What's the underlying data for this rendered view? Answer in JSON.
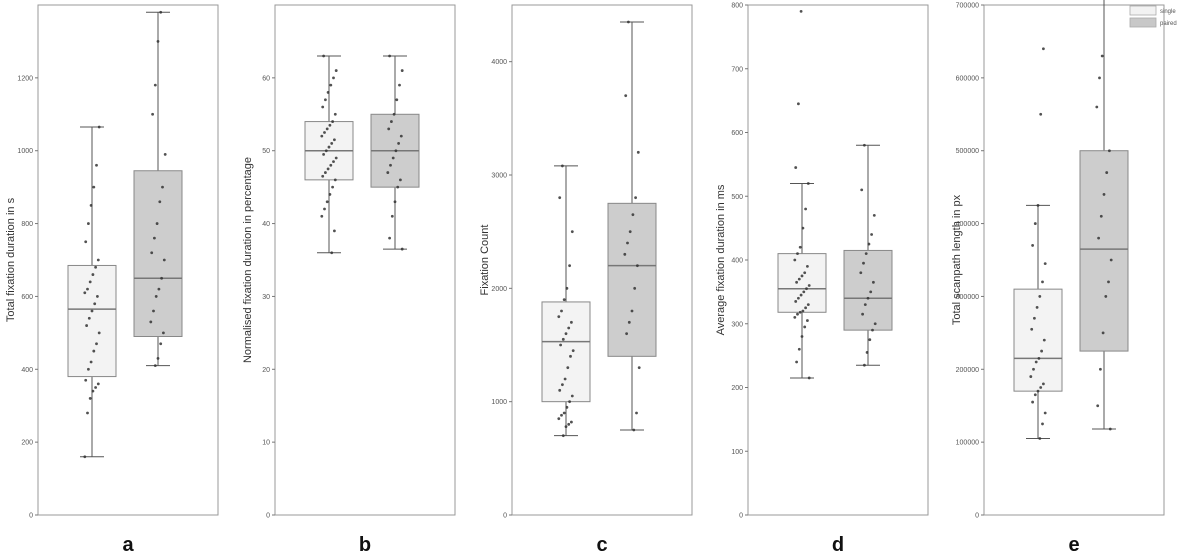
{
  "colors": {
    "single": "#f2f2f2",
    "paired": "#c8c8c8",
    "outline": "#888888",
    "points": "#333333"
  },
  "legend": [
    "single",
    "paired"
  ],
  "chart_data": [
    {
      "type": "box",
      "panel": "a",
      "ylabel": "Total fixation duration in s",
      "ylim": [
        0,
        1400
      ],
      "yticks": [
        "0",
        "200",
        "400",
        "600",
        "800",
        "1000",
        "1200"
      ],
      "series": [
        {
          "name": "single",
          "min": 160,
          "q1": 380,
          "median": 565,
          "q3": 685,
          "max": 1065,
          "points": [
            160,
            280,
            320,
            340,
            350,
            360,
            370,
            400,
            420,
            450,
            470,
            500,
            520,
            540,
            560,
            580,
            600,
            610,
            620,
            640,
            660,
            680,
            700,
            750,
            800,
            850,
            900,
            960,
            1065
          ]
        },
        {
          "name": "paired",
          "min": 410,
          "q1": 490,
          "median": 650,
          "q3": 945,
          "max": 1380,
          "points": [
            410,
            430,
            470,
            500,
            530,
            560,
            600,
            620,
            650,
            700,
            720,
            760,
            800,
            860,
            900,
            990,
            1100,
            1180,
            1300,
            1380
          ]
        }
      ]
    },
    {
      "type": "box",
      "panel": "b",
      "ylabel": "Normalised fixation duration in percentage",
      "ylim": [
        0,
        70
      ],
      "yticks": [
        "0",
        "10",
        "20",
        "30",
        "40",
        "50",
        "60"
      ],
      "series": [
        {
          "name": "single",
          "min": 36,
          "q1": 46,
          "median": 50,
          "q3": 54,
          "max": 63,
          "points": [
            36,
            39,
            41,
            42,
            43,
            44,
            45,
            46,
            46.5,
            47,
            47.5,
            48,
            48.5,
            49,
            49.5,
            50,
            50.5,
            51,
            51.5,
            52,
            52.5,
            53,
            53.5,
            54,
            55,
            56,
            57,
            58,
            59,
            60,
            61,
            63
          ]
        },
        {
          "name": "paired",
          "min": 36.5,
          "q1": 45,
          "median": 50,
          "q3": 55,
          "max": 63,
          "points": [
            36.5,
            38,
            41,
            43,
            45,
            46,
            47,
            48,
            49,
            50,
            51,
            52,
            53,
            54,
            55,
            57,
            59,
            61,
            63
          ]
        }
      ]
    },
    {
      "type": "box",
      "panel": "c",
      "ylabel": "Fixation Count",
      "ylim": [
        0,
        4500
      ],
      "yticks": [
        "0",
        "1000",
        "2000",
        "3000",
        "4000"
      ],
      "series": [
        {
          "name": "single",
          "min": 700,
          "q1": 1000,
          "median": 1530,
          "q3": 1880,
          "max": 3080,
          "points": [
            700,
            780,
            800,
            820,
            850,
            880,
            900,
            950,
            1000,
            1050,
            1100,
            1150,
            1200,
            1300,
            1400,
            1450,
            1500,
            1550,
            1600,
            1650,
            1700,
            1750,
            1800,
            1900,
            2000,
            2200,
            2500,
            2800,
            3080
          ]
        },
        {
          "name": "paired",
          "min": 750,
          "q1": 1400,
          "median": 2200,
          "q3": 2750,
          "max": 4350,
          "points": [
            750,
            900,
            1300,
            1600,
            1700,
            1800,
            2000,
            2200,
            2300,
            2400,
            2500,
            2650,
            2800,
            3200,
            3700,
            4350
          ]
        }
      ]
    },
    {
      "type": "box",
      "panel": "d",
      "ylabel": "Average fixation duration in ms",
      "ylim": [
        0,
        800
      ],
      "yticks": [
        "0",
        "100",
        "200",
        "300",
        "400",
        "500",
        "600",
        "700",
        "800"
      ],
      "series": [
        {
          "name": "single",
          "min": 215,
          "q1": 318,
          "median": 355,
          "q3": 410,
          "max": 520,
          "points": [
            215,
            240,
            260,
            280,
            295,
            305,
            310,
            315,
            318,
            320,
            325,
            330,
            335,
            340,
            345,
            350,
            355,
            360,
            365,
            370,
            375,
            380,
            390,
            400,
            410,
            420,
            450,
            480,
            520,
            545,
            645,
            790
          ]
        },
        {
          "name": "paired",
          "min": 235,
          "q1": 290,
          "median": 340,
          "q3": 415,
          "max": 580,
          "points": [
            235,
            255,
            275,
            290,
            300,
            315,
            330,
            340,
            350,
            365,
            380,
            395,
            410,
            425,
            440,
            470,
            510,
            580
          ]
        }
      ]
    },
    {
      "type": "box",
      "panel": "e",
      "ylabel": "Total scanpath length in px",
      "ylim": [
        0,
        700000
      ],
      "yticks": [
        "0",
        "100000",
        "200000",
        "300000",
        "400000",
        "500000",
        "600000",
        "700000"
      ],
      "series": [
        {
          "name": "single",
          "min": 105000,
          "q1": 170000,
          "median": 215000,
          "q3": 310000,
          "max": 425000,
          "points": [
            105000,
            125000,
            140000,
            155000,
            165000,
            170000,
            175000,
            180000,
            190000,
            200000,
            210000,
            215000,
            225000,
            240000,
            255000,
            270000,
            285000,
            300000,
            320000,
            345000,
            370000,
            400000,
            425000,
            550000,
            640000
          ]
        },
        {
          "name": "paired",
          "min": 118000,
          "q1": 225000,
          "median": 365000,
          "q3": 500000,
          "max": 715000,
          "points": [
            118000,
            150000,
            200000,
            250000,
            300000,
            320000,
            350000,
            380000,
            410000,
            440000,
            470000,
            500000,
            560000,
            600000,
            630000,
            715000
          ]
        }
      ]
    }
  ]
}
